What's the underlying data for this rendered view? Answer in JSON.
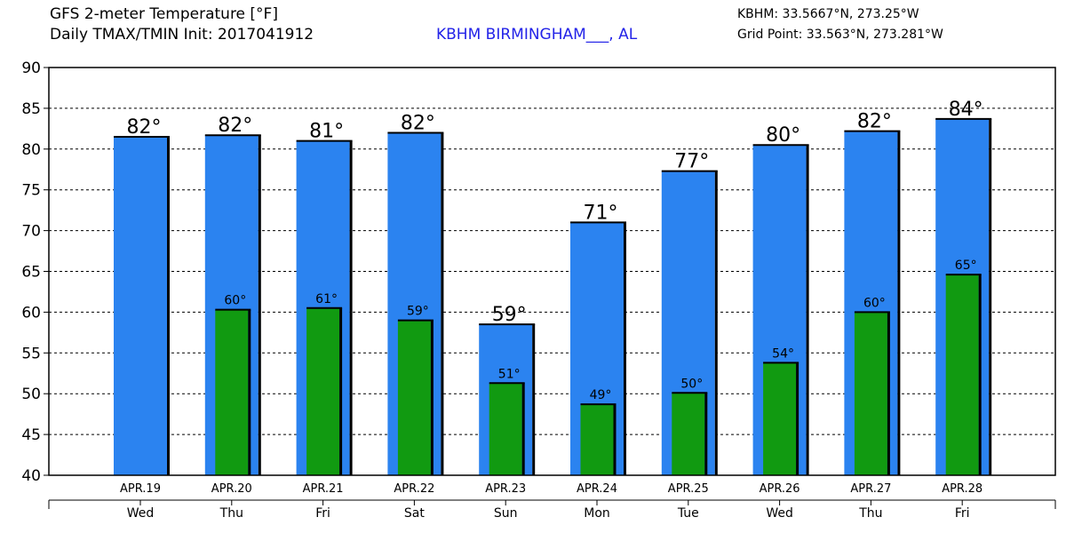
{
  "header": {
    "title_line1": "GFS 2-meter Temperature [°F]",
    "title_line2": "Daily TMAX/TMIN Init: 2017041912",
    "station": "KBHM BIRMINGHAM___, AL",
    "station_color": "#2323e8",
    "coord_line1": "KBHM: 33.5667°N, 273.25°W",
    "coord_line2": "Grid Point: 33.563°N, 273.281°W"
  },
  "chart_data": {
    "type": "bar",
    "ylim": [
      40,
      90
    ],
    "yticks": [
      40,
      45,
      50,
      55,
      60,
      65,
      70,
      75,
      80,
      85,
      90
    ],
    "grid": "horizontal dashed",
    "categories": [
      "APR.19",
      "APR.20",
      "APR.21",
      "APR.22",
      "APR.23",
      "APR.24",
      "APR.25",
      "APR.26",
      "APR.27",
      "APR.28"
    ],
    "days": [
      "Wed",
      "Thu",
      "Fri",
      "Sat",
      "Sun",
      "Mon",
      "Tue",
      "Wed",
      "Thu",
      "Fri"
    ],
    "series": [
      {
        "color": "#2b83f0",
        "values": [
          81.5,
          81.7,
          81.0,
          82.0,
          58.5,
          71.0,
          77.3,
          80.5,
          82.2,
          83.7
        ],
        "labels": [
          "82°",
          "82°",
          "81°",
          "82°",
          "59°",
          "71°",
          "77°",
          "80°",
          "82°",
          "84°"
        ]
      },
      {
        "color": "#119a11",
        "values": [
          null,
          60.3,
          60.5,
          59.0,
          51.3,
          48.7,
          50.1,
          53.8,
          60.0,
          64.6
        ],
        "labels": [
          "",
          "60°",
          "61°",
          "59°",
          "51°",
          "49°",
          "50°",
          "54°",
          "60°",
          "65°"
        ]
      }
    ]
  }
}
